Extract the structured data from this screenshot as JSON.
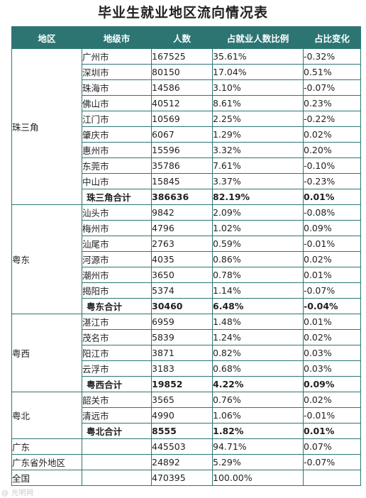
{
  "title": "毕业生就业地区流向情况表",
  "headers": {
    "region": "地区",
    "city": "地级市",
    "count": "人数",
    "share": "占就业人数比例",
    "change": "占比变化"
  },
  "groups": [
    {
      "region": "珠三角",
      "rows": [
        {
          "city": "广州市",
          "count": "167525",
          "share": "35.61%",
          "change": "-0.32%"
        },
        {
          "city": "深圳市",
          "count": "80150",
          "share": "17.04%",
          "change": "0.51%"
        },
        {
          "city": "珠海市",
          "count": "14586",
          "share": "3.10%",
          "change": "-0.07%"
        },
        {
          "city": "佛山市",
          "count": "40512",
          "share": "8.61%",
          "change": "0.23%"
        },
        {
          "city": "江门市",
          "count": "10569",
          "share": "2.25%",
          "change": "-0.22%"
        },
        {
          "city": "肇庆市",
          "count": "6067",
          "share": "1.29%",
          "change": "0.02%"
        },
        {
          "city": "惠州市",
          "count": "15596",
          "share": "3.32%",
          "change": "0.20%"
        },
        {
          "city": "东莞市",
          "count": "35786",
          "share": "7.61%",
          "change": "-0.10%"
        },
        {
          "city": "中山市",
          "count": "15845",
          "share": "3.37%",
          "change": "-0.23%"
        }
      ],
      "subtotal": {
        "city": "珠三角合计",
        "count": "386636",
        "share": "82.19%",
        "change": "0.01%"
      }
    },
    {
      "region": "粤东",
      "rows": [
        {
          "city": "汕头市",
          "count": "9842",
          "share": "2.09%",
          "change": "-0.08%"
        },
        {
          "city": "梅州市",
          "count": "4796",
          "share": "1.02%",
          "change": "0.09%"
        },
        {
          "city": "汕尾市",
          "count": "2763",
          "share": "0.59%",
          "change": "-0.01%"
        },
        {
          "city": "河源市",
          "count": "4035",
          "share": "0.86%",
          "change": "0.02%"
        },
        {
          "city": "潮州市",
          "count": "3650",
          "share": "0.78%",
          "change": "0.01%"
        },
        {
          "city": "揭阳市",
          "count": "5374",
          "share": "1.14%",
          "change": "-0.07%"
        }
      ],
      "subtotal": {
        "city": "粤东合计",
        "count": "30460",
        "share": "6.48%",
        "change": "-0.04%"
      }
    },
    {
      "region": "粤西",
      "rows": [
        {
          "city": "湛江市",
          "count": "6959",
          "share": "1.48%",
          "change": "0.01%"
        },
        {
          "city": "茂名市",
          "count": "5839",
          "share": "1.24%",
          "change": "0.02%"
        },
        {
          "city": "阳江市",
          "count": "3871",
          "share": "0.82%",
          "change": "0.03%"
        },
        {
          "city": "云浮市",
          "count": "3183",
          "share": "0.68%",
          "change": "0.03%"
        }
      ],
      "subtotal": {
        "city": "粤西合计",
        "count": "19852",
        "share": "4.22%",
        "change": "0.09%"
      }
    },
    {
      "region": "粤北",
      "rows": [
        {
          "city": "韶关市",
          "count": "3565",
          "share": "0.76%",
          "change": "0.02%"
        },
        {
          "city": "清远市",
          "count": "4990",
          "share": "1.06%",
          "change": "-0.01%"
        }
      ],
      "subtotal": {
        "city": "粤北合计",
        "count": "8555",
        "share": "1.82%",
        "change": "0.01%"
      }
    }
  ],
  "totals": [
    {
      "region": "广东",
      "city": "",
      "count": "445503",
      "share": "94.71%",
      "change": "0.07%"
    },
    {
      "region": "广东省外地区",
      "city": "",
      "count": "24892",
      "share": "5.29%",
      "change": "-0.07%"
    },
    {
      "region": "全国",
      "city": "",
      "count": "470395",
      "share": "100.00%",
      "change": ""
    }
  ],
  "watermark": "@ 光明网"
}
